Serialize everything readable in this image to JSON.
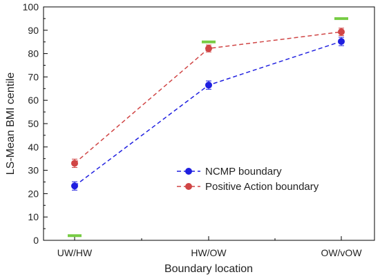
{
  "chart_data": {
    "type": "line",
    "categories": [
      "UW/HW",
      "HW/OW",
      "OW/vOW"
    ],
    "xlabel": "Boundary location",
    "ylabel": "LS-Mean BMI centile",
    "ylim": [
      0,
      100
    ],
    "yticks": [
      0,
      10,
      20,
      30,
      40,
      50,
      60,
      70,
      80,
      90,
      100
    ],
    "grid": false,
    "legend_position": "center-right",
    "series": [
      {
        "name": "NCMP boundary",
        "values": [
          23.3,
          66.5,
          85.2
        ],
        "errors": [
          1.8,
          1.8,
          1.8
        ],
        "color": "#1f1fe0",
        "line_style": "dashed"
      },
      {
        "name": "Positive Action boundary",
        "values": [
          33.0,
          82.2,
          89.3
        ],
        "errors": [
          1.8,
          1.5,
          1.6
        ],
        "color": "#d04545",
        "line_style": "dashed"
      }
    ],
    "reference_markers": {
      "values": [
        2,
        85,
        95
      ],
      "color": "#77cc44"
    }
  }
}
